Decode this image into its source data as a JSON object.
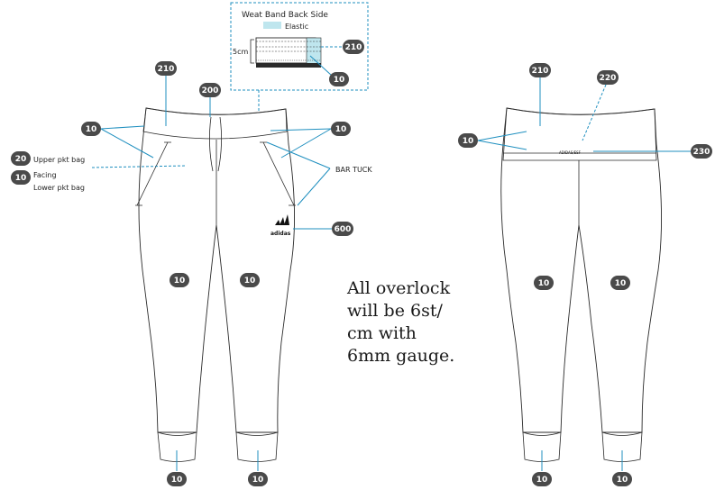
{
  "inset": {
    "title": "Weat Band Back Side",
    "legend_label": "Elastic",
    "dimension_label": "5cm"
  },
  "labels": {
    "upper_pkt_bag": "Upper pkt bag",
    "facing": "Facing",
    "lower_pkt_bag": "Lower pkt bag",
    "bar_tuck": "BAR TUCK"
  },
  "brand": {
    "front_logo": "adidas",
    "back_tag": "ADIDAS/ESF"
  },
  "note": {
    "lines": [
      "All overlock",
      "will be 6st/",
      "cm with",
      "6mm gauge."
    ]
  },
  "callouts": {
    "inset_210": "210",
    "inset_10": "10",
    "front_210": "210",
    "front_200": "200",
    "front_left_10": "10",
    "front_right_10": "10",
    "upper_pkt_20": "20",
    "facing_10": "10",
    "logo_600": "600",
    "front_leg_left_10": "10",
    "front_leg_right_10": "10",
    "front_cuff_left_10": "10",
    "front_cuff_right_10": "10",
    "back_210": "210",
    "back_220": "220",
    "back_10": "10",
    "back_230": "230",
    "back_leg_left_10": "10",
    "back_leg_right_10": "10",
    "back_cuff_left_10": "10",
    "back_cuff_right_10": "10"
  },
  "colors": {
    "badge": "#4a4a4a",
    "leader": "#1f8fbf",
    "elastic": "#bfe6ee"
  }
}
